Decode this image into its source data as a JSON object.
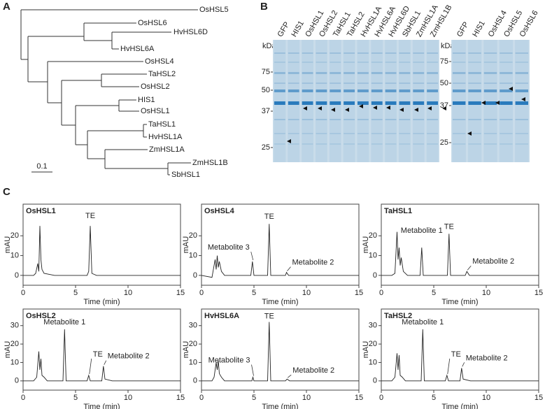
{
  "panel_labels": [
    "A",
    "B",
    "C"
  ],
  "tree": {
    "leaves": [
      "OsHSL5",
      "OsHSL6",
      "HvHSL6D",
      "HvHSL6A",
      "OsHSL4",
      "TaHSL2",
      "OsHSL2",
      "HIS1",
      "OsHSL1",
      "TaHSL1",
      "HvHSL1A",
      "ZmHSL1A",
      "ZmHSL1B",
      "SbHSL1"
    ],
    "scale": "0.1"
  },
  "gel": {
    "unit": "kDa",
    "left": {
      "lanes": [
        "GFP",
        "HIS1",
        "OsHSL1",
        "OsHSL2",
        "TaHSL1",
        "TaHSL2",
        "HvHSL1A",
        "HvHSL6A",
        "HvHSL6D",
        "SbHSL1",
        "ZmHSL1A",
        "ZmHSL1B"
      ],
      "markers": [
        75,
        50,
        37,
        25
      ]
    },
    "right": {
      "lanes": [
        "GFP",
        "HIS1",
        "OsHSL4",
        "OsHSL5",
        "OsHSL6"
      ],
      "markers": [
        75,
        50,
        37,
        25
      ]
    }
  },
  "chart_data": [
    {
      "type": "line",
      "title": "OsHSL1",
      "x_label": "Time (min)",
      "y_label": "mAU",
      "xlim": [
        0,
        15
      ],
      "xticks": [
        0,
        5,
        10,
        15
      ],
      "ylim": [
        -5,
        36
      ],
      "yticks": [
        0,
        10,
        20
      ],
      "annotations": [
        "TE"
      ],
      "series": [
        {
          "color": "#222222",
          "x": [
            0,
            1,
            1.2,
            1.4,
            1.5,
            1.6,
            1.7,
            1.8,
            2.0,
            2.5,
            3,
            6.1,
            6.25,
            6.4,
            6.55,
            7,
            10,
            15
          ],
          "values": [
            0,
            0,
            1,
            6,
            2,
            25,
            8,
            3,
            1,
            0.5,
            0,
            0,
            2,
            25,
            1,
            0,
            0,
            0
          ]
        }
      ]
    },
    {
      "type": "line",
      "title": "OsHSL4",
      "x_label": "Time (min)",
      "y_label": "mAU",
      "xlim": [
        0,
        15
      ],
      "xticks": [
        0,
        5,
        10,
        15
      ],
      "ylim": [
        -5,
        36
      ],
      "yticks": [
        0,
        10,
        20
      ],
      "annotations": [
        "Metabolite 3",
        "TE",
        "Metabolite 2"
      ],
      "series": [
        {
          "color": "#222222",
          "x": [
            0,
            1,
            1.3,
            1.4,
            1.5,
            1.6,
            1.7,
            1.9,
            2.2,
            3,
            4.7,
            4.85,
            5.0,
            6.3,
            6.45,
            6.6,
            8.0,
            8.1,
            8.3,
            15
          ],
          "values": [
            0,
            -1,
            8,
            3,
            10,
            4,
            7,
            2,
            0,
            0,
            0,
            7,
            0,
            0,
            26,
            0,
            0,
            1.5,
            0,
            0
          ]
        }
      ]
    },
    {
      "type": "line",
      "title": "TaHSL1",
      "x_label": "Time (min)",
      "y_label": "mAU",
      "xlim": [
        0,
        15
      ],
      "xticks": [
        0,
        5,
        10,
        15
      ],
      "ylim": [
        -5,
        36
      ],
      "yticks": [
        0,
        10,
        20
      ],
      "annotations": [
        "Metabolite 1",
        "TE",
        "Metabolite 2"
      ],
      "series": [
        {
          "color": "#222222",
          "x": [
            0,
            1,
            1.3,
            1.5,
            1.6,
            1.7,
            1.8,
            1.9,
            2.1,
            2.5,
            3.7,
            3.85,
            4.0,
            6.3,
            6.45,
            6.6,
            8.0,
            8.15,
            8.4,
            15
          ],
          "values": [
            0,
            0,
            1,
            22,
            8,
            14,
            5,
            9,
            2,
            0,
            0,
            14,
            0,
            0,
            21,
            0,
            0,
            2,
            0,
            0
          ]
        }
      ]
    },
    {
      "type": "line",
      "title": "OsHSL2",
      "x_label": "Time (min)",
      "y_label": "mAU",
      "xlim": [
        0,
        15
      ],
      "xticks": [
        0,
        5,
        10,
        15
      ],
      "ylim": [
        -5,
        39
      ],
      "yticks": [
        0,
        10,
        20,
        30
      ],
      "annotations": [
        "Metabolite 1",
        "TE",
        "Metabolite 2"
      ],
      "series": [
        {
          "color": "#222222",
          "x": [
            0,
            1,
            1.3,
            1.5,
            1.6,
            1.7,
            1.8,
            2.0,
            2.3,
            3.8,
            3.95,
            4.1,
            6.1,
            6.25,
            6.4,
            7.5,
            7.65,
            7.8,
            8.5,
            15
          ],
          "values": [
            0,
            0,
            2,
            16,
            6,
            12,
            3,
            2,
            0,
            0,
            28,
            0,
            0,
            3,
            0,
            0,
            8,
            1,
            0,
            0
          ]
        }
      ]
    },
    {
      "type": "line",
      "title": "HvHSL6A",
      "x_label": "Time (min)",
      "y_label": "mAU",
      "xlim": [
        0,
        15
      ],
      "xticks": [
        0,
        5,
        10,
        15
      ],
      "ylim": [
        -5,
        39
      ],
      "yticks": [
        0,
        10,
        20,
        30
      ],
      "annotations": [
        "Metabolite 3",
        "TE",
        "Metabolite 2"
      ],
      "series": [
        {
          "color": "#222222",
          "x": [
            0,
            1,
            1.2,
            1.4,
            1.5,
            1.6,
            1.7,
            1.9,
            2.2,
            4.8,
            4.9,
            5.0,
            6.3,
            6.45,
            6.6,
            8.0,
            8.15,
            8.4,
            15
          ],
          "values": [
            0,
            0,
            2,
            10,
            6,
            11,
            4,
            2,
            0,
            0,
            2,
            0,
            0,
            32,
            0,
            0,
            1,
            0,
            0
          ]
        }
      ]
    },
    {
      "type": "line",
      "title": "TaHSL2",
      "x_label": "Time (min)",
      "y_label": "mAU",
      "xlim": [
        0,
        15
      ],
      "xticks": [
        0,
        5,
        10,
        15
      ],
      "ylim": [
        -5,
        39
      ],
      "yticks": [
        0,
        10,
        20,
        30
      ],
      "annotations": [
        "Metabolite 1",
        "TE",
        "Metabolite 2"
      ],
      "series": [
        {
          "color": "#222222",
          "x": [
            0,
            1,
            1.3,
            1.5,
            1.6,
            1.7,
            1.8,
            2.0,
            2.3,
            3.8,
            3.95,
            4.1,
            6.1,
            6.25,
            6.4,
            7.5,
            7.65,
            7.8,
            8.5,
            15
          ],
          "values": [
            0,
            0,
            2,
            15,
            6,
            14,
            3,
            2,
            0,
            0,
            28,
            0,
            0,
            3,
            0,
            0,
            7,
            1,
            0,
            0
          ]
        }
      ]
    }
  ]
}
